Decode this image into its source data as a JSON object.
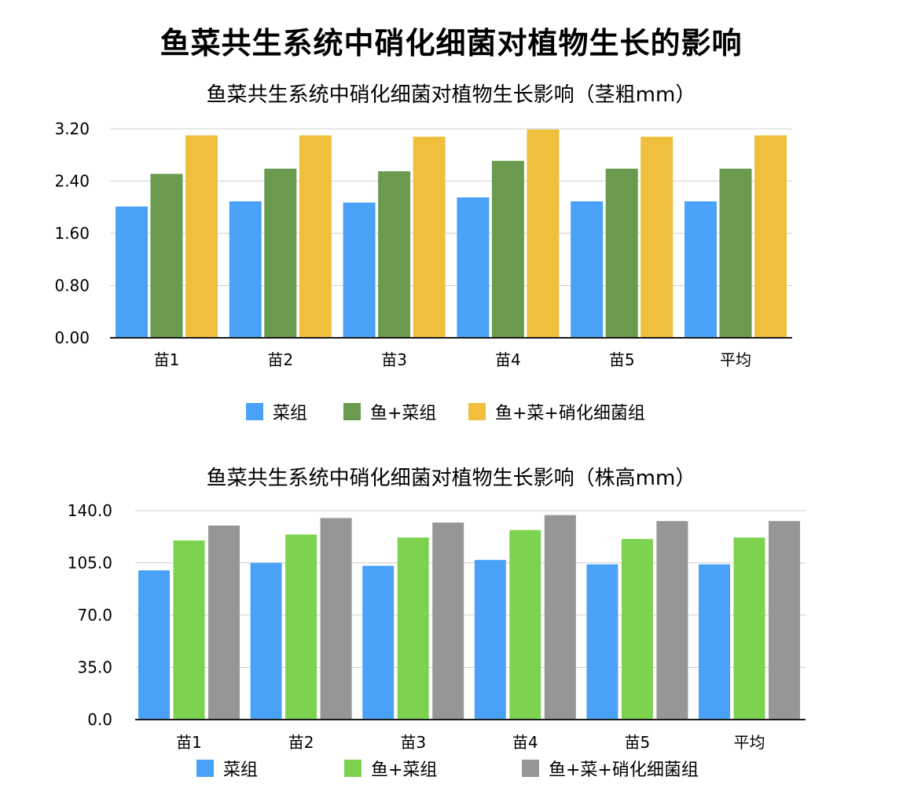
{
  "page": {
    "title": "鱼菜共生系统中硝化细菌对植物生长的影响"
  },
  "chart_data": [
    {
      "type": "bar",
      "title": "鱼菜共生系统中硝化细菌对植物生长影响（茎粗mm）",
      "categories": [
        "苗1",
        "苗2",
        "苗3",
        "苗4",
        "苗5",
        "平均"
      ],
      "yticks": [
        "0.00",
        "0.80",
        "1.60",
        "2.40",
        "3.20"
      ],
      "ylim": [
        0,
        3.2
      ],
      "grid": true,
      "legend_position": "bottom",
      "series": [
        {
          "name": "菜组",
          "color": "#4aa2f8",
          "values": [
            2.01,
            2.09,
            2.07,
            2.15,
            2.09,
            2.09
          ]
        },
        {
          "name": "鱼+菜组",
          "color": "#6a9a4e",
          "values": [
            2.51,
            2.59,
            2.55,
            2.71,
            2.59,
            2.59
          ]
        },
        {
          "name": "鱼+菜+硝化细菌组",
          "color": "#f0bf3e",
          "values": [
            3.1,
            3.1,
            3.08,
            3.19,
            3.08,
            3.1
          ]
        }
      ]
    },
    {
      "type": "bar",
      "title": "鱼菜共生系统中硝化细菌对植物生长影响（株高mm）",
      "categories": [
        "苗1",
        "苗2",
        "苗3",
        "苗4",
        "苗5",
        "平均"
      ],
      "yticks": [
        "0.0",
        "35.0",
        "70.0",
        "105.0",
        "140.0"
      ],
      "ylim": [
        0,
        140
      ],
      "grid": true,
      "legend_position": "bottom",
      "series": [
        {
          "name": "菜组",
          "color": "#4aa2f8",
          "values": [
            100,
            105,
            103,
            107,
            104,
            104
          ]
        },
        {
          "name": "鱼+菜组",
          "color": "#7dd34f",
          "values": [
            120,
            124,
            122,
            127,
            121,
            122
          ]
        },
        {
          "name": "鱼+菜+硝化细菌组",
          "color": "#969696",
          "values": [
            130,
            135,
            132,
            137,
            133,
            133
          ]
        }
      ]
    }
  ]
}
